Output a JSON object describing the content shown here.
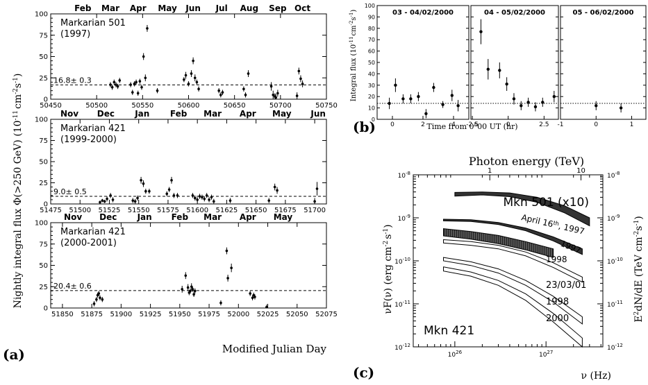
{
  "figure": {
    "panel_a_letter": "(a)",
    "panel_b_letter": "(b)",
    "panel_c_letter": "(c)",
    "a_ylabel": "Nightly integral flux Φ(>250 GeV) (10",
    "a_ylabel_sup1": "-11",
    "a_ylabel_mid": "cm",
    "a_ylabel_sup2": "-2",
    "a_ylabel_end": "s",
    "a_ylabel_sup3": "-1",
    "a_ylabel_close": ")",
    "a_xlabel": "Modified Julian Day",
    "b_ylabel": "Integral flux (10",
    "b_ylabel_sup1": "-11",
    "b_ylabel_mid": "cm",
    "b_ylabel_sup2": "-2",
    "b_ylabel_end": "s",
    "b_ylabel_sup3": "-1",
    "b_ylabel_close": ")",
    "b_xlabel": "Time from 0",
    "b_xlabel_sup": "h",
    "b_xlabel_end": "00 UT (hr)",
    "c_top_label": "Photon energy (TeV)",
    "c_xlabel": "ν (Hz)",
    "c_ylabel_left": "νF(ν) (erg cm",
    "c_ylabel_left_sup1": "-2",
    "c_ylabel_left_mid": "s",
    "c_ylabel_left_sup2": "-1",
    "c_ylabel_left_close": ")",
    "c_ylabel_right": "E",
    "c_ylabel_right_sup1": "2",
    "c_ylabel_right_mid": "dN/dE (TeV cm",
    "c_ylabel_right_sup2": "-2",
    "c_ylabel_right_end": "s",
    "c_ylabel_right_sup3": "-1",
    "c_ylabel_right_close": ")"
  },
  "chart_data": [
    {
      "id": "a1",
      "type": "scatter",
      "source_line1": "Markarian 501",
      "source_line2": "(1997)",
      "months": [
        "Feb",
        "Mar",
        "Apr",
        "May",
        "Jun",
        "Jul",
        "Aug",
        "Sep",
        "Oct"
      ],
      "month_mjd": [
        50485,
        50515,
        50545,
        50577,
        50605,
        50636,
        50666,
        50697,
        50724
      ],
      "xlim": [
        50450,
        50750
      ],
      "xticks": [
        50450,
        50500,
        50550,
        50600,
        50650,
        50700,
        50750
      ],
      "ylim": [
        0,
        100
      ],
      "yticks": [
        0,
        25,
        50,
        75,
        100
      ],
      "mean_value": 16.8,
      "mean_label": "16.8± 0.3",
      "x": [
        50515,
        50517,
        50519,
        50521,
        50523,
        50525,
        50537,
        50539,
        50541,
        50543,
        50545,
        50547,
        50549,
        50551,
        50553,
        50555,
        50566,
        50595,
        50597,
        50600,
        50603,
        50605,
        50607,
        50609,
        50611,
        50633,
        50635,
        50637,
        50660,
        50662,
        50665,
        50690,
        50692,
        50694,
        50695,
        50697,
        50718,
        50720,
        50722,
        50724
      ],
      "y": [
        17,
        14,
        20,
        17,
        15,
        22,
        17,
        8,
        18,
        20,
        7,
        21,
        14,
        50,
        25,
        83,
        10,
        23,
        28,
        18,
        30,
        45,
        25,
        20,
        12,
        10,
        5,
        8,
        12,
        5,
        30,
        15,
        5,
        3,
        2,
        7,
        4,
        33,
        24,
        18
      ],
      "yerr": [
        3,
        3,
        3,
        3,
        3,
        3,
        3,
        3,
        3,
        3,
        3,
        3,
        3,
        4,
        4,
        4,
        3,
        3,
        4,
        3,
        4,
        4,
        4,
        3,
        3,
        3,
        3,
        3,
        3,
        3,
        4,
        5,
        5,
        4,
        4,
        4,
        4,
        4,
        4,
        4
      ]
    },
    {
      "id": "a2",
      "type": "scatter",
      "source_line1": "Markarian 421",
      "source_line2": "(1999-2000)",
      "months": [
        "Nov",
        "Dec",
        "Jan",
        "Feb",
        "Mar",
        "Apr",
        "May",
        "Jun"
      ],
      "month_mjd": [
        51491,
        51522,
        51553,
        51584,
        51613,
        51643,
        51672,
        51703
      ],
      "xlim": [
        51475,
        51710
      ],
      "xticks": [
        51475,
        51500,
        51525,
        51550,
        51575,
        51600,
        51625,
        51650,
        51675,
        51700
      ],
      "ylim": [
        0,
        100
      ],
      "yticks": [
        0,
        25,
        50,
        75,
        100
      ],
      "mean_value": 9.0,
      "mean_label": "9.0± 0.5",
      "x": [
        51517,
        51519,
        51521,
        51523,
        51526,
        51528,
        51545,
        51547,
        51549,
        51552,
        51554,
        51556,
        51559,
        51574,
        51576,
        51578,
        51580,
        51583,
        51596,
        51598,
        51600,
        51602,
        51604,
        51606,
        51608,
        51610,
        51612,
        51614,
        51628,
        51661,
        51666,
        51668,
        51700,
        51702
      ],
      "y": [
        2,
        4,
        3,
        6,
        10,
        5,
        4,
        3,
        7,
        28,
        24,
        15,
        15,
        12,
        17,
        28,
        10,
        10,
        10,
        7,
        5,
        9,
        8,
        6,
        10,
        5,
        8,
        3,
        4,
        4,
        20,
        16,
        3,
        18
      ],
      "yerr": [
        2,
        2,
        2,
        3,
        3,
        3,
        3,
        3,
        3,
        4,
        4,
        3,
        3,
        3,
        3,
        4,
        3,
        3,
        3,
        3,
        3,
        3,
        3,
        3,
        3,
        3,
        3,
        3,
        3,
        3,
        4,
        4,
        4,
        8
      ]
    },
    {
      "id": "a3",
      "type": "scatter",
      "source_line1": "Markarian 421",
      "source_line2": "(2000-2001)",
      "months": [
        "Nov",
        "Dec",
        "Jan",
        "Feb",
        "Mar",
        "Apr",
        "May"
      ],
      "month_mjd": [
        51859,
        51889,
        51920,
        51950,
        51978,
        52008,
        52038
      ],
      "xlim": [
        51840,
        52075
      ],
      "xticks": [
        51850,
        51875,
        51900,
        51925,
        51950,
        51975,
        52000,
        52025,
        52050,
        52075
      ],
      "ylim": [
        0,
        100
      ],
      "yticks": [
        0,
        25,
        50,
        75,
        100
      ],
      "mean_value": 20.4,
      "mean_label": "20.4± 0.6",
      "x": [
        51877,
        51879,
        51880,
        51881,
        51882,
        51884,
        51952,
        51955,
        51957,
        51958,
        51959,
        51960,
        51961,
        51962,
        51963,
        51985,
        51990,
        51991,
        51994,
        52010,
        52012,
        52013,
        52014,
        52024
      ],
      "y": [
        5,
        10,
        15,
        17,
        12,
        10,
        22,
        38,
        24,
        18,
        20,
        25,
        22,
        16,
        20,
        6,
        67,
        35,
        47,
        17,
        12,
        15,
        13,
        1
      ],
      "yerr": [
        3,
        3,
        3,
        3,
        3,
        3,
        4,
        4,
        4,
        3,
        3,
        4,
        3,
        3,
        3,
        3,
        4,
        4,
        5,
        3,
        3,
        3,
        3,
        3
      ]
    },
    {
      "id": "b",
      "type": "scatter",
      "panels": [
        {
          "label": "03 - 04/02/2000",
          "xlim": [
            -1,
            5
          ],
          "xticks": [
            0,
            2,
            4
          ],
          "x": [
            -0.2,
            0.2,
            0.7,
            1.2,
            1.7,
            2.2,
            2.7,
            3.3,
            3.9,
            4.3
          ],
          "y": [
            14,
            30,
            18,
            18,
            20,
            5,
            28,
            13,
            21,
            12
          ],
          "yerr": [
            5,
            6,
            4,
            4,
            4,
            4,
            4,
            3,
            5,
            5
          ]
        },
        {
          "label": "04 - 05/02/2000",
          "xlim": [
            -2.6,
            3.5
          ],
          "xticks": [
            -2.5,
            0,
            2.5
          ],
          "x": [
            -1.9,
            -1.4,
            -0.6,
            -0.1,
            0.4,
            0.9,
            1.4,
            1.9,
            2.4,
            3.2
          ],
          "y": [
            77,
            44,
            43,
            31,
            18,
            12,
            15,
            11,
            15,
            20
          ],
          "yerr": [
            11,
            9,
            7,
            6,
            5,
            4,
            4,
            4,
            4,
            5
          ]
        },
        {
          "label": "05 - 06/02/2000",
          "xlim": [
            -1,
            1.4
          ],
          "xticks": [
            -1,
            0,
            1
          ],
          "x": [
            0.0,
            0.7
          ],
          "y": [
            12,
            10
          ],
          "yerr": [
            4,
            4
          ]
        }
      ],
      "ylim": [
        0,
        100
      ],
      "yticks": [
        0,
        10,
        20,
        30,
        40,
        50,
        60,
        70,
        80,
        90,
        100
      ],
      "mean_value": 14
    },
    {
      "id": "c",
      "type": "area",
      "x_scale": "log",
      "xlim_hz": [
        3.5e+25,
        4.2e+27
      ],
      "ylim": [
        1e-12,
        1e-08
      ],
      "xticks_hz": [
        "10^26",
        "10^27"
      ],
      "top_ticks_tev": [
        "1",
        "10"
      ],
      "right_ticks": [
        "10^-8",
        "10^-9",
        "10^-10",
        "10^-11",
        "10^-12"
      ],
      "source_upper": "Mkn 501 (x10)",
      "source_lower": "Mkn 421",
      "series": [
        {
          "name": "April 16th, 1997",
          "label_main": "April 16",
          "label_sup": "th",
          "label_end": ", 1997",
          "style": "dark",
          "x_hz": [
            1e+26,
            2e+26,
            4e+26,
            8e+26,
            1.6e+27,
            3e+27
          ],
          "upper": [
            3.9e-09,
            4e-09,
            3.8e-09,
            3e-09,
            1.9e-09,
            1e-09
          ],
          "lower": [
            3.2e-09,
            3.4e-09,
            3.1e-09,
            2.3e-09,
            1.3e-09,
            6.5e-10
          ]
        },
        {
          "name": "1997",
          "label_main": "1997",
          "style": "dark",
          "x_hz": [
            7.5e+25,
            1.5e+26,
            3e+26,
            6e+26,
            1.2e+27,
            2.5e+27
          ],
          "upper": [
            9.3e-10,
            9e-10,
            7.8e-10,
            5.8e-10,
            3.6e-10,
            1.9e-10
          ],
          "lower": [
            8.5e-10,
            8.2e-10,
            7e-10,
            5e-10,
            2.9e-10,
            1.4e-10
          ]
        },
        {
          "name": "1998 (Mkn 501)",
          "label_main": "1998",
          "style": "hatched",
          "x_hz": [
            7.5e+25,
            1.5e+26,
            3e+26,
            6e+26,
            1.2e+27
          ],
          "upper": [
            5.6e-10,
            4.8e-10,
            3.9e-10,
            2.8e-10,
            1.9e-10
          ],
          "lower": [
            3.8e-10,
            3.2e-10,
            2.5e-10,
            1.8e-10,
            1.2e-10
          ]
        },
        {
          "name": "23/03/01",
          "label_main": "23/03/01",
          "style": "open",
          "x_hz": [
            7.5e+25,
            1.5e+26,
            3e+26,
            6e+26,
            1.2e+27,
            2.5e+27
          ],
          "upper": [
            3.1e-10,
            2.8e-10,
            2.3e-10,
            1.6e-10,
            9e-11,
            4.2e-11
          ],
          "lower": [
            2.6e-10,
            2.3e-10,
            1.9e-10,
            1.3e-10,
            7e-11,
            3.2e-11
          ]
        },
        {
          "name": "1998 (Mkn 421)",
          "label_main": "1998",
          "style": "open",
          "x_hz": [
            7.5e+25,
            1.5e+26,
            3e+26,
            6e+26,
            1.2e+27,
            2.5e+27
          ],
          "upper": [
            1.2e-10,
            9.5e-11,
            6.5e-11,
            3.5e-11,
            1.5e-11,
            5e-12
          ],
          "lower": [
            1e-10,
            7.8e-11,
            5.2e-11,
            2.7e-11,
            1.1e-11,
            3.4e-12
          ]
        },
        {
          "name": "2000",
          "label_main": "2000",
          "style": "open",
          "x_hz": [
            7.5e+25,
            1.5e+26,
            3e+26,
            6e+26,
            1.2e+27,
            2.5e+27
          ],
          "upper": [
            7.2e-11,
            5.5e-11,
            3.5e-11,
            1.7e-11,
            6e-12,
            1.6e-12
          ],
          "lower": [
            5.8e-11,
            4.4e-11,
            2.7e-11,
            1.2e-11,
            3.8e-12,
            1e-12
          ]
        }
      ]
    }
  ]
}
